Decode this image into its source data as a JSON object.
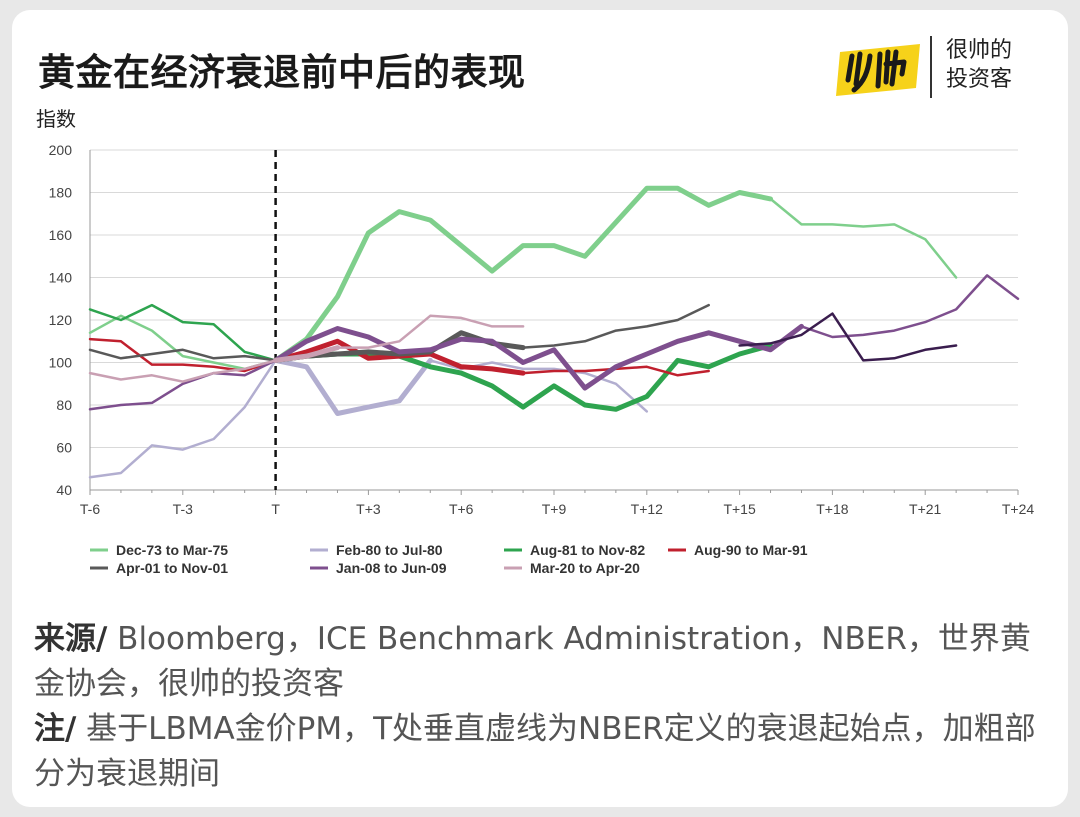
{
  "header": {
    "title": "黄金在经济衰退前中后的表现",
    "logo_text_line1": "很帅的",
    "logo_text_line2": "投资客"
  },
  "chart_data": {
    "type": "line",
    "ylabel": "指数",
    "xlabel": "",
    "ylim": [
      40,
      200
    ],
    "yticks": [
      40,
      60,
      80,
      100,
      120,
      140,
      160,
      180,
      200
    ],
    "xlim": [
      -6,
      24
    ],
    "xticks": [
      {
        "v": -6,
        "label": "T-6"
      },
      {
        "v": -3,
        "label": "T-3"
      },
      {
        "v": 0,
        "label": "T"
      },
      {
        "v": 3,
        "label": "T+3"
      },
      {
        "v": 6,
        "label": "T+6"
      },
      {
        "v": 9,
        "label": "T+9"
      },
      {
        "v": 12,
        "label": "T+12"
      },
      {
        "v": 15,
        "label": "T+15"
      },
      {
        "v": 18,
        "label": "T+18"
      },
      {
        "v": 21,
        "label": "T+21"
      },
      {
        "v": 24,
        "label": "T+24"
      }
    ],
    "recession_start_marker": 0,
    "grid": "horizontal",
    "legend_position": "bottom",
    "series": [
      {
        "name": "Dec-73 to Mar-75",
        "color": "#7fcf8c",
        "x": [
          -6,
          -5,
          -4,
          -3,
          -2,
          -1,
          0,
          1,
          2,
          3,
          4,
          5,
          6,
          7,
          8,
          9,
          10,
          11,
          12,
          13,
          14,
          15,
          16,
          17,
          18,
          19,
          20,
          21,
          22
        ],
        "values": [
          114,
          122,
          115,
          103,
          100,
          97,
          101,
          111,
          131,
          161,
          171,
          167,
          155,
          143,
          155,
          155,
          150,
          166,
          182,
          182,
          174,
          180,
          177,
          165,
          165,
          164,
          165,
          158,
          140
        ],
        "bold": [
          [
            0,
            16
          ]
        ]
      },
      {
        "name": "Feb-80 to Jul-80",
        "color": "#b2aed0",
        "x": [
          -6,
          -5,
          -4,
          -3,
          -2,
          -1,
          0,
          1,
          2,
          3,
          4,
          5,
          6,
          7,
          8,
          9,
          10,
          11,
          12
        ],
        "values": [
          46,
          48,
          61,
          59,
          64,
          79,
          101,
          98,
          76,
          79,
          82,
          101,
          97,
          100,
          97,
          97,
          95,
          90,
          77
        ],
        "bold": [
          [
            0,
            5
          ]
        ]
      },
      {
        "name": "Aug-81 to Nov-82",
        "color": "#2ea44f",
        "x": [
          -6,
          -5,
          -4,
          -3,
          -2,
          -1,
          0,
          1,
          2,
          3,
          4,
          5,
          6,
          7,
          8,
          9,
          10,
          11,
          12,
          13,
          14,
          15,
          16
        ],
        "values": [
          125,
          120,
          127,
          119,
          118,
          105,
          101,
          103,
          104,
          104,
          103,
          98,
          95,
          89,
          79,
          89,
          80,
          78,
          84,
          101,
          98,
          104,
          108
        ],
        "bold": [
          [
            0,
            16
          ]
        ]
      },
      {
        "name": "Aug-90 to Mar-91",
        "color": "#c0202e",
        "x": [
          -6,
          -5,
          -4,
          -3,
          -2,
          -1,
          0,
          1,
          2,
          3,
          4,
          5,
          6,
          7,
          8,
          9,
          10,
          11,
          12,
          13,
          14
        ],
        "values": [
          111,
          110,
          99,
          99,
          98,
          96,
          101,
          105,
          110,
          102,
          103,
          104,
          98,
          97,
          95,
          96,
          96,
          97,
          98,
          94,
          96
        ],
        "bold": [
          [
            0,
            8
          ]
        ]
      },
      {
        "name": "Apr-01 to Nov-01",
        "color": "#595959",
        "x": [
          -6,
          -5,
          -4,
          -3,
          -2,
          -1,
          0,
          1,
          2,
          3,
          4,
          5,
          6,
          7,
          8,
          9,
          10,
          11,
          12,
          13,
          14
        ],
        "values": [
          106,
          102,
          104,
          106,
          102,
          103,
          101,
          103,
          104,
          105,
          104,
          105,
          114,
          109,
          107,
          108,
          110,
          115,
          117,
          120,
          127
        ],
        "bold": [
          [
            0,
            8
          ]
        ]
      },
      {
        "name": "Jan-08 to Jun-09",
        "color": "#7e4f8e",
        "x": [
          -6,
          -5,
          -4,
          -3,
          -2,
          -1,
          0,
          1,
          2,
          3,
          4,
          5,
          6,
          7,
          8,
          9,
          10,
          11,
          12,
          13,
          14,
          15,
          16,
          17,
          18,
          19,
          20,
          21,
          22,
          23,
          24
        ],
        "values": [
          78,
          80,
          81,
          90,
          95,
          94,
          101,
          110,
          116,
          112,
          105,
          106,
          111,
          110,
          100,
          106,
          88,
          98,
          104,
          110,
          114,
          110,
          106,
          117,
          112,
          113,
          115,
          119,
          125,
          141,
          130
        ],
        "bold": [
          [
            0,
            17
          ]
        ]
      },
      {
        "name": "Mar-20 to Apr-20",
        "color": "#c9a0b3",
        "x": [
          -6,
          -5,
          -4,
          -3,
          -2,
          -1,
          0,
          1,
          2,
          3,
          4,
          5,
          6,
          7,
          8
        ],
        "values": [
          95,
          92,
          94,
          91,
          95,
          97,
          101,
          103,
          107,
          107,
          110,
          122,
          121,
          117,
          117
        ],
        "bold": [
          [
            0,
            2
          ]
        ]
      },
      {
        "name": "",
        "color": "#3a1d4e",
        "x": [
          15,
          16,
          17,
          18,
          19,
          20,
          21,
          22
        ],
        "values": [
          108,
          109,
          113,
          123,
          101,
          102,
          106,
          108
        ],
        "bold": [],
        "hide_legend": true
      }
    ]
  },
  "footer": {
    "source_label": "来源/",
    "source_text": " Bloomberg，ICE Benchmark Administration，NBER，世界黄金协会，很帅的投资客",
    "note_label": "注/",
    "note_text": " 基于LBMA金价PM，T处垂直虚线为NBER定义的衰退起始点，加粗部分为衰退期间"
  }
}
